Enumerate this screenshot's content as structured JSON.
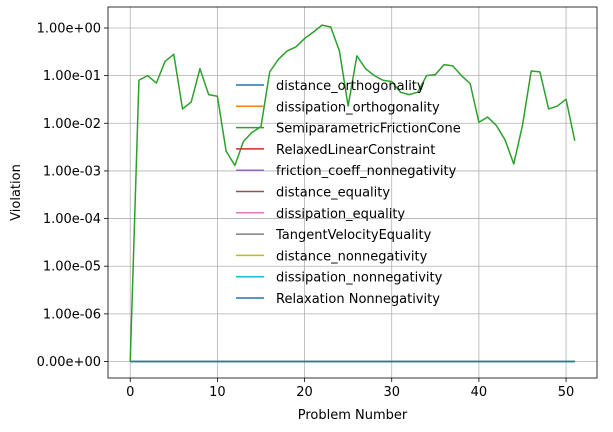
{
  "chart_data": {
    "type": "line",
    "xlabel": "Problem Number",
    "ylabel": "Violation",
    "yscale": "symlog",
    "xlim": [
      -2.55,
      53.55
    ],
    "x_ticks": [
      0,
      10,
      20,
      30,
      40,
      50
    ],
    "y_ticks": [
      {
        "value": 0,
        "label": "0.00e+00"
      },
      {
        "value": 1e-06,
        "label": "1.00e-06"
      },
      {
        "value": 1e-05,
        "label": "1.00e-05"
      },
      {
        "value": 0.0001,
        "label": "1.00e-04"
      },
      {
        "value": 0.001,
        "label": "1.00e-03"
      },
      {
        "value": 0.01,
        "label": "1.00e-02"
      },
      {
        "value": 0.1,
        "label": "1.00e-01"
      },
      {
        "value": 1,
        "label": "1.00e+00"
      }
    ],
    "grid": true,
    "legend_position": "center",
    "x": [
      0,
      1,
      2,
      3,
      4,
      5,
      6,
      7,
      8,
      9,
      10,
      11,
      12,
      13,
      14,
      15,
      16,
      17,
      18,
      19,
      20,
      21,
      22,
      23,
      24,
      25,
      26,
      27,
      28,
      29,
      30,
      31,
      32,
      33,
      34,
      35,
      36,
      37,
      38,
      39,
      40,
      41,
      42,
      43,
      44,
      45,
      46,
      47,
      48,
      49,
      50,
      51
    ],
    "series": [
      {
        "name": "distance_orthogonality",
        "color": "#1f77b4",
        "values": [
          0,
          0,
          0,
          0,
          0,
          0,
          0,
          0,
          0,
          0,
          0,
          0,
          0,
          0,
          0,
          0,
          0,
          0,
          0,
          0,
          0,
          0,
          0,
          0,
          0,
          0,
          0,
          0,
          0,
          0,
          0,
          0,
          0,
          0,
          0,
          0,
          0,
          0,
          0,
          0,
          0,
          0,
          0,
          0,
          0,
          0,
          0,
          0,
          0,
          0,
          0,
          0
        ]
      },
      {
        "name": "dissipation_orthogonality",
        "color": "#ff7f0e",
        "values": [
          0,
          0,
          0,
          0,
          0,
          0,
          0,
          0,
          0,
          0,
          0,
          0,
          0,
          0,
          0,
          0,
          0,
          0,
          0,
          0,
          0,
          0,
          0,
          0,
          0,
          0,
          0,
          0,
          0,
          0,
          0,
          0,
          0,
          0,
          0,
          0,
          0,
          0,
          0,
          0,
          0,
          0,
          0,
          0,
          0,
          0,
          0,
          0,
          0,
          0,
          0,
          0
        ]
      },
      {
        "name": "SemiparametricFrictionCone",
        "color": "#2ca02c",
        "values": [
          0,
          0.08,
          0.1,
          0.07,
          0.2,
          0.28,
          0.02,
          0.028,
          0.14,
          0.04,
          0.037,
          0.0026,
          0.0013,
          0.0042,
          0.0065,
          0.0085,
          0.12,
          0.22,
          0.33,
          0.4,
          0.6,
          0.82,
          1.15,
          1.05,
          0.33,
          0.023,
          0.26,
          0.14,
          0.1,
          0.08,
          0.075,
          0.045,
          0.04,
          0.045,
          0.1,
          0.105,
          0.17,
          0.16,
          0.1,
          0.068,
          0.0105,
          0.0135,
          0.009,
          0.0045,
          0.0014,
          0.009,
          0.125,
          0.12,
          0.02,
          0.023,
          0.032,
          0.0043
        ]
      },
      {
        "name": "RelaxedLinearConstraint",
        "color": "#d62728",
        "values": [
          0,
          0,
          0,
          0,
          0,
          0,
          0,
          0,
          0,
          0,
          0,
          0,
          0,
          0,
          0,
          0,
          0,
          0,
          0,
          0,
          0,
          0,
          0,
          0,
          0,
          0,
          0,
          0,
          0,
          0,
          0,
          0,
          0,
          0,
          0,
          0,
          0,
          0,
          0,
          0,
          0,
          0,
          0,
          0,
          0,
          0,
          0,
          0,
          0,
          0,
          0,
          0
        ]
      },
      {
        "name": "friction_coeff_nonnegativity",
        "color": "#9467bd",
        "values": [
          0,
          0,
          0,
          0,
          0,
          0,
          0,
          0,
          0,
          0,
          0,
          0,
          0,
          0,
          0,
          0,
          0,
          0,
          0,
          0,
          0,
          0,
          0,
          0,
          0,
          0,
          0,
          0,
          0,
          0,
          0,
          0,
          0,
          0,
          0,
          0,
          0,
          0,
          0,
          0,
          0,
          0,
          0,
          0,
          0,
          0,
          0,
          0,
          0,
          0,
          0,
          0
        ]
      },
      {
        "name": "distance_equality",
        "color": "#8c564b",
        "values": [
          0,
          0,
          0,
          0,
          0,
          0,
          0,
          0,
          0,
          0,
          0,
          0,
          0,
          0,
          0,
          0,
          0,
          0,
          0,
          0,
          0,
          0,
          0,
          0,
          0,
          0,
          0,
          0,
          0,
          0,
          0,
          0,
          0,
          0,
          0,
          0,
          0,
          0,
          0,
          0,
          0,
          0,
          0,
          0,
          0,
          0,
          0,
          0,
          0,
          0,
          0,
          0
        ]
      },
      {
        "name": "dissipation_equality",
        "color": "#e377c2",
        "values": [
          0,
          0,
          0,
          0,
          0,
          0,
          0,
          0,
          0,
          0,
          0,
          0,
          0,
          0,
          0,
          0,
          0,
          0,
          0,
          0,
          0,
          0,
          0,
          0,
          0,
          0,
          0,
          0,
          0,
          0,
          0,
          0,
          0,
          0,
          0,
          0,
          0,
          0,
          0,
          0,
          0,
          0,
          0,
          0,
          0,
          0,
          0,
          0,
          0,
          0,
          0,
          0
        ]
      },
      {
        "name": "TangentVelocityEquality",
        "color": "#7f7f7f",
        "values": [
          0,
          0,
          0,
          0,
          0,
          0,
          0,
          0,
          0,
          0,
          0,
          0,
          0,
          0,
          0,
          0,
          0,
          0,
          0,
          0,
          0,
          0,
          0,
          0,
          0,
          0,
          0,
          0,
          0,
          0,
          0,
          0,
          0,
          0,
          0,
          0,
          0,
          0,
          0,
          0,
          0,
          0,
          0,
          0,
          0,
          0,
          0,
          0,
          0,
          0,
          0,
          0
        ]
      },
      {
        "name": "distance_nonnegativity",
        "color": "#bcbd22",
        "values": [
          0,
          0,
          0,
          0,
          0,
          0,
          0,
          0,
          0,
          0,
          0,
          0,
          0,
          0,
          0,
          0,
          0,
          0,
          0,
          0,
          0,
          0,
          0,
          0,
          0,
          0,
          0,
          0,
          0,
          0,
          0,
          0,
          0,
          0,
          0,
          0,
          0,
          0,
          0,
          0,
          0,
          0,
          0,
          0,
          0,
          0,
          0,
          0,
          0,
          0,
          0,
          0
        ]
      },
      {
        "name": "dissipation_nonnegativity",
        "color": "#17becf",
        "values": [
          0,
          0,
          0,
          0,
          0,
          0,
          0,
          0,
          0,
          0,
          0,
          0,
          0,
          0,
          0,
          0,
          0,
          0,
          0,
          0,
          0,
          0,
          0,
          0,
          0,
          0,
          0,
          0,
          0,
          0,
          0,
          0,
          0,
          0,
          0,
          0,
          0,
          0,
          0,
          0,
          0,
          0,
          0,
          0,
          0,
          0,
          0,
          0,
          0,
          0,
          0,
          0
        ]
      },
      {
        "name": "Relaxation Nonnegativity",
        "color": "#1f77b4",
        "values": [
          0,
          0,
          0,
          0,
          0,
          0,
          0,
          0,
          0,
          0,
          0,
          0,
          0,
          0,
          0,
          0,
          0,
          0,
          0,
          0,
          0,
          0,
          0,
          0,
          0,
          0,
          0,
          0,
          0,
          0,
          0,
          0,
          0,
          0,
          0,
          0,
          0,
          0,
          0,
          0,
          0,
          0,
          0,
          0,
          0,
          0,
          0,
          0,
          0,
          0,
          0,
          0
        ]
      }
    ]
  }
}
